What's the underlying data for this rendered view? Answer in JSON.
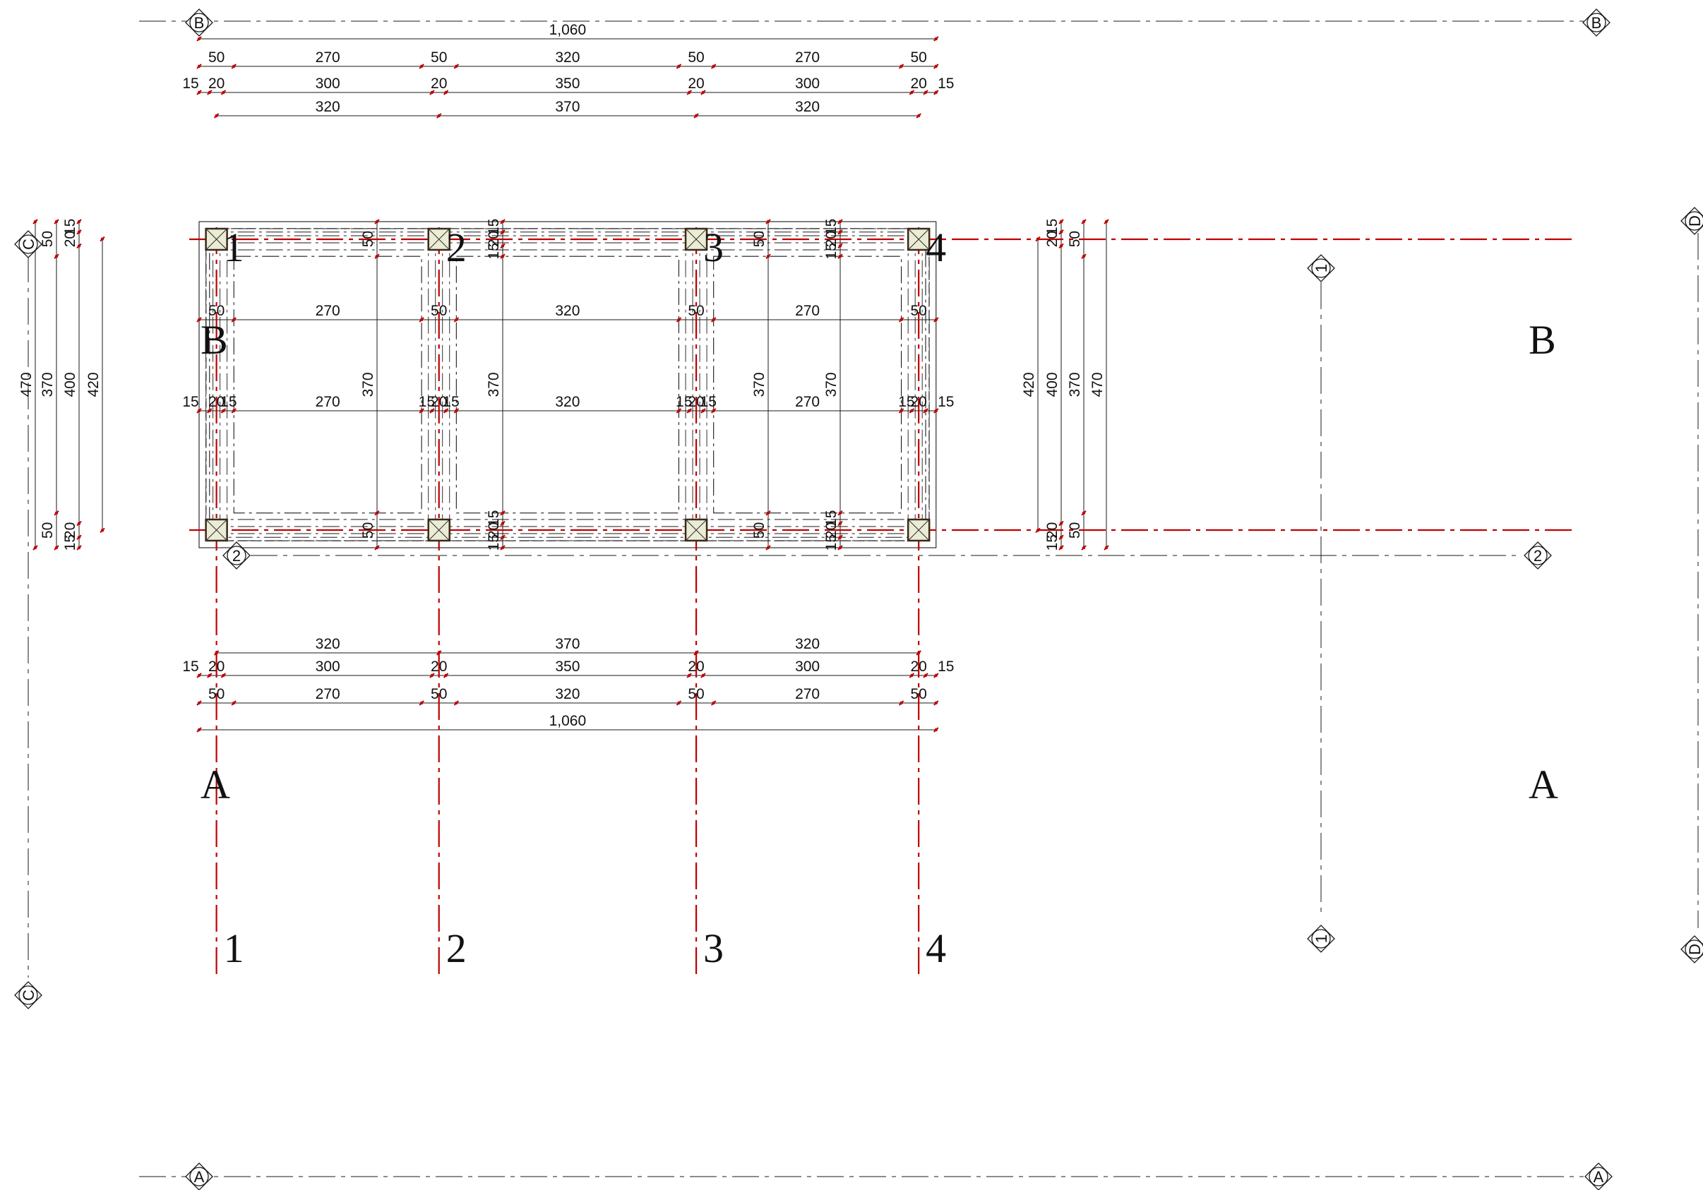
{
  "colors": {
    "axis": "#c00000",
    "line": "#1a1a1a",
    "tick": "#c00000",
    "column_fill": "#e9ecd6"
  },
  "grid_labels": {
    "vertical": [
      "1",
      "2",
      "3",
      "4"
    ],
    "horizontal": [
      "A",
      "B"
    ]
  },
  "section_markers": {
    "a": "A",
    "b": "B",
    "c": "C",
    "d": "D",
    "one": "1",
    "two": "2"
  },
  "dims_top": {
    "overall": [
      "1,060"
    ],
    "beams": [
      "50",
      "270",
      "50",
      "320",
      "50",
      "270",
      "50"
    ],
    "columns": [
      "15",
      "20",
      "300",
      "20",
      "350",
      "20",
      "300",
      "20",
      "15"
    ],
    "axes": [
      "320",
      "370",
      "320"
    ]
  },
  "dims_bottom": {
    "axes": [
      "320",
      "370",
      "320"
    ],
    "columns": [
      "15",
      "20",
      "300",
      "20",
      "350",
      "20",
      "300",
      "20",
      "15"
    ],
    "beams": [
      "50",
      "270",
      "50",
      "320",
      "50",
      "270",
      "50"
    ],
    "overall": [
      "1,060"
    ]
  },
  "dims_interior": {
    "beams_row": [
      "50",
      "270",
      "50",
      "320",
      "50",
      "270",
      "50"
    ],
    "columns_row": [
      "15",
      "20",
      "15",
      "270",
      "15",
      "20",
      "15",
      "320",
      "15",
      "20",
      "15",
      "270",
      "15",
      "20",
      "15"
    ]
  },
  "dims_left": {
    "overall": [
      "470"
    ],
    "beams": [
      "50",
      "370",
      "50"
    ],
    "columns": [
      "15",
      "20",
      "400",
      "20",
      "15"
    ],
    "axes": [
      "420"
    ]
  },
  "dims_right": {
    "axes": [
      "420"
    ],
    "columns": [
      "15",
      "20",
      "400",
      "20",
      "15"
    ],
    "beams": [
      "50",
      "370",
      "50"
    ],
    "overall": [
      "470"
    ]
  },
  "dims_vertical_interior": {
    "at_x1": [
      "50",
      "370",
      "50"
    ],
    "at_x2": [
      "15",
      "20",
      "15",
      "370",
      "15",
      "20",
      "15"
    ],
    "at_x3": [
      "50",
      "370",
      "50"
    ],
    "at_x4": [
      "15",
      "20",
      "15",
      "370",
      "15",
      "20",
      "15"
    ]
  }
}
